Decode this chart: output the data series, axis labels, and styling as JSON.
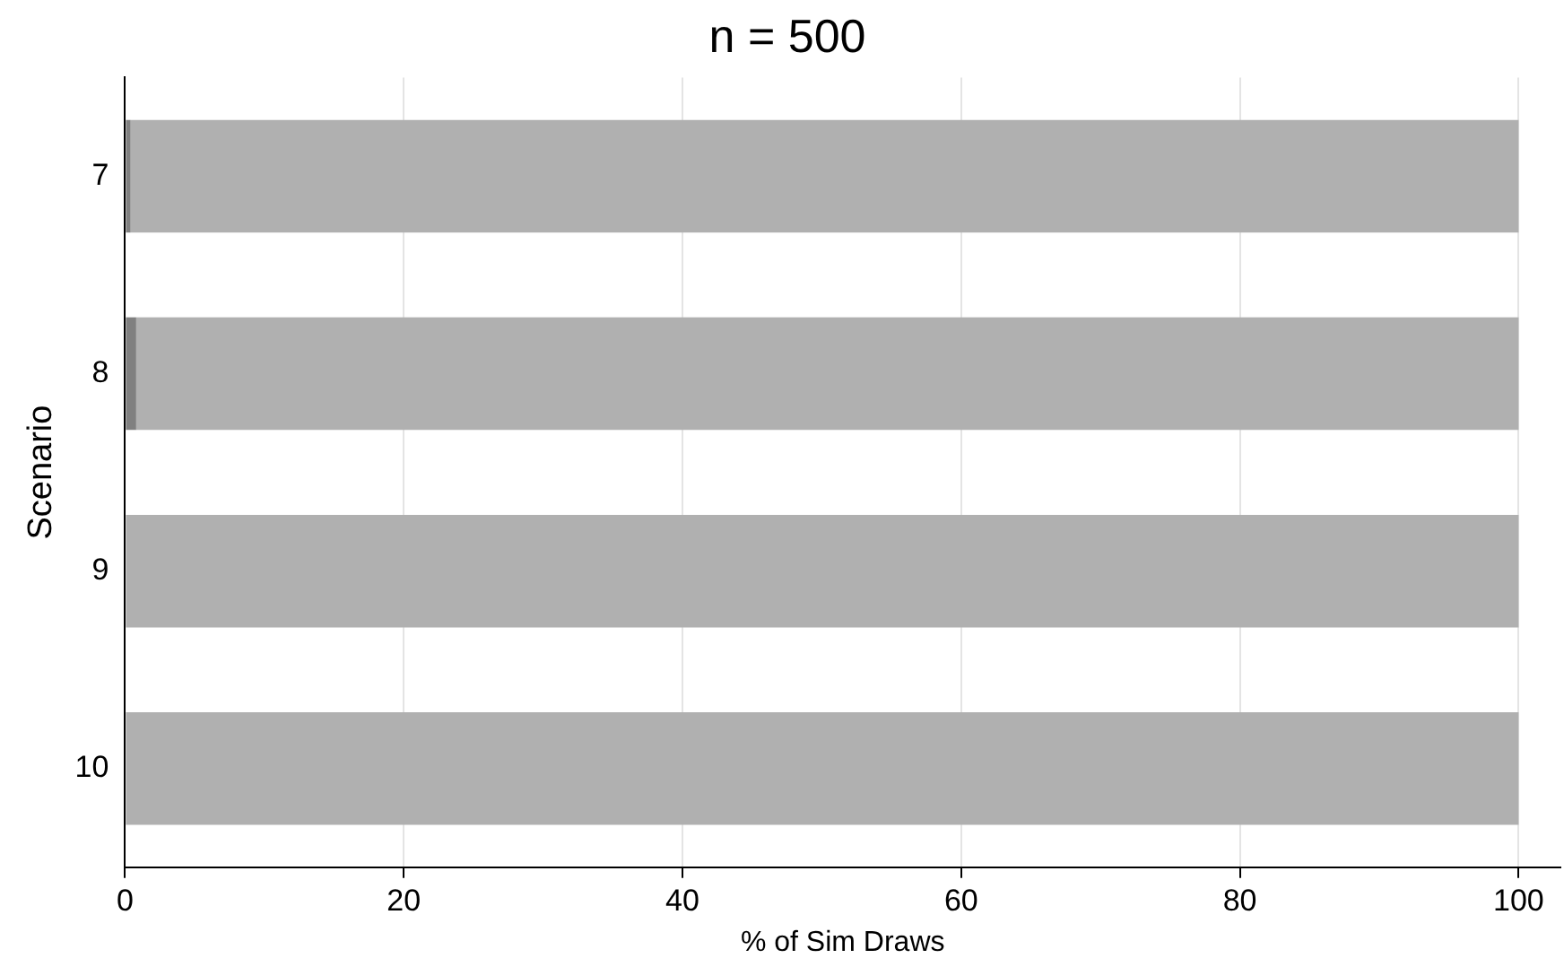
{
  "chart_data": {
    "type": "bar",
    "orientation": "horizontal",
    "stacked": true,
    "title": "n = 500",
    "xlabel": "% of Sim Draws",
    "ylabel": "Scenario",
    "categories": [
      "7",
      "8",
      "9",
      "10"
    ],
    "series": [
      {
        "color": "#808080",
        "values": [
          0.4,
          0.8,
          0,
          0
        ]
      },
      {
        "color": "#b0b0b0",
        "values": [
          99.6,
          99.2,
          100,
          100
        ]
      }
    ],
    "xlim": [
      0,
      103
    ],
    "xticks": [
      0,
      20,
      40,
      60,
      80,
      100
    ],
    "grid": "x",
    "legend": false
  }
}
